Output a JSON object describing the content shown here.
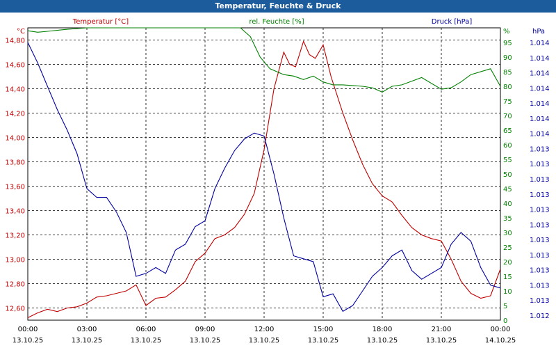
{
  "window": {
    "title": "Temperatur, Feuchte & Druck"
  },
  "chart_data": {
    "type": "line",
    "title": "Temperatur, Feuchte & Druck",
    "x_hours": [
      0,
      3,
      6,
      9,
      12,
      15,
      18,
      21,
      24
    ],
    "x_tick_times": [
      "00:00",
      "03:00",
      "06:00",
      "09:00",
      "12:00",
      "15:00",
      "18:00",
      "21:00",
      "00:00"
    ],
    "x_tick_dates": [
      "13.10.25",
      "13.10.25",
      "13.10.25",
      "13.10.25",
      "13.10.25",
      "13.10.25",
      "13.10.25",
      "13.10.25",
      "14.10.25"
    ],
    "axes": {
      "left": {
        "label": "Temperatur [°C]",
        "unit": "°C",
        "color": "#c00000",
        "range": [
          12.5,
          14.9
        ],
        "ticks": [
          "14,80",
          "14,60",
          "14,40",
          "14,20",
          "14,00",
          "13,80",
          "13,60",
          "13,40",
          "13,20",
          "13,00",
          "12,80",
          "12,60"
        ]
      },
      "right1": {
        "label": "rel. Feuchte [%]",
        "unit": "%",
        "color": "#008000",
        "range": [
          0,
          100
        ],
        "ticks": [
          "95",
          "90",
          "85",
          "80",
          "75",
          "70",
          "65",
          "60",
          "55",
          "50",
          "45",
          "40",
          "35",
          "30",
          "25",
          "20",
          "15",
          "10",
          "5",
          "0"
        ]
      },
      "right2": {
        "label": "Druck [hPa]",
        "unit": "hPa",
        "color": "#0000a0",
        "ticks": [
          "1.014",
          "1.014",
          "1.014",
          "1.014",
          "1.014",
          "1.014",
          "1.014",
          "1.013",
          "1.013",
          "1.013",
          "1.013",
          "1.013",
          "1.013",
          "1.013",
          "1.013",
          "1.013",
          "1.013",
          "1.013",
          "1.012"
        ]
      }
    },
    "series": [
      {
        "name": "Temperatur",
        "axis": "left",
        "color": "#c00000",
        "points": [
          [
            0,
            12.52
          ],
          [
            0.5,
            12.56
          ],
          [
            1,
            12.59
          ],
          [
            1.5,
            12.57
          ],
          [
            2,
            12.6
          ],
          [
            2.5,
            12.61
          ],
          [
            3,
            12.64
          ],
          [
            3.5,
            12.69
          ],
          [
            4,
            12.7
          ],
          [
            4.5,
            12.72
          ],
          [
            5,
            12.74
          ],
          [
            5.5,
            12.79
          ],
          [
            6,
            12.62
          ],
          [
            6.5,
            12.68
          ],
          [
            7,
            12.69
          ],
          [
            7.5,
            12.75
          ],
          [
            8,
            12.82
          ],
          [
            8.5,
            12.98
          ],
          [
            9,
            13.05
          ],
          [
            9.5,
            13.17
          ],
          [
            10,
            13.2
          ],
          [
            10.5,
            13.26
          ],
          [
            11,
            13.37
          ],
          [
            11.5,
            13.54
          ],
          [
            12,
            13.9
          ],
          [
            12.5,
            14.4
          ],
          [
            13,
            14.7
          ],
          [
            13.3,
            14.6
          ],
          [
            13.6,
            14.58
          ],
          [
            14,
            14.79
          ],
          [
            14.3,
            14.68
          ],
          [
            14.6,
            14.65
          ],
          [
            15,
            14.76
          ],
          [
            15.4,
            14.5
          ],
          [
            16,
            14.2
          ],
          [
            16.5,
            13.98
          ],
          [
            17,
            13.78
          ],
          [
            17.5,
            13.62
          ],
          [
            18,
            13.52
          ],
          [
            18.5,
            13.47
          ],
          [
            19,
            13.36
          ],
          [
            19.5,
            13.26
          ],
          [
            20,
            13.2
          ],
          [
            20.5,
            13.17
          ],
          [
            21,
            13.15
          ],
          [
            21.5,
            13.0
          ],
          [
            22,
            12.82
          ],
          [
            22.5,
            12.72
          ],
          [
            23,
            12.68
          ],
          [
            23.5,
            12.7
          ],
          [
            24,
            12.92
          ]
        ]
      },
      {
        "name": "rel. Feuchte",
        "axis": "right1",
        "color": "#008000",
        "points": [
          [
            0,
            99
          ],
          [
            0.5,
            98.5
          ],
          [
            1,
            98.8
          ],
          [
            2,
            99.5
          ],
          [
            3,
            100
          ],
          [
            4,
            100.5
          ],
          [
            5,
            100.5
          ],
          [
            6,
            100.5
          ],
          [
            7,
            100.5
          ],
          [
            8,
            100.5
          ],
          [
            9,
            100.5
          ],
          [
            10,
            100.2
          ],
          [
            10.8,
            100
          ],
          [
            11.3,
            97
          ],
          [
            11.8,
            90
          ],
          [
            12.3,
            86
          ],
          [
            13,
            84
          ],
          [
            13.5,
            83.5
          ],
          [
            14,
            82.3
          ],
          [
            14.5,
            83.5
          ],
          [
            15,
            81.5
          ],
          [
            15.5,
            80.5
          ],
          [
            16,
            80.5
          ],
          [
            17,
            80
          ],
          [
            17.5,
            79.5
          ],
          [
            18,
            78
          ],
          [
            18.5,
            80
          ],
          [
            19,
            80.5
          ],
          [
            20,
            83
          ],
          [
            21,
            79
          ],
          [
            21.5,
            79.5
          ],
          [
            22,
            81.5
          ],
          [
            22.5,
            84
          ],
          [
            23.5,
            86
          ],
          [
            24,
            80
          ]
        ]
      },
      {
        "name": "Druck",
        "axis": "right2",
        "color": "#0000a0",
        "points": [
          [
            0,
            95
          ],
          [
            0.5,
            88
          ],
          [
            1,
            80
          ],
          [
            1.5,
            72
          ],
          [
            2,
            65
          ],
          [
            2.5,
            57
          ],
          [
            3,
            45
          ],
          [
            3.5,
            42
          ],
          [
            4,
            42
          ],
          [
            4.5,
            37
          ],
          [
            5,
            30
          ],
          [
            5.5,
            15
          ],
          [
            6,
            16
          ],
          [
            6.5,
            18
          ],
          [
            7,
            16
          ],
          [
            7.5,
            24
          ],
          [
            8,
            26
          ],
          [
            8.5,
            32
          ],
          [
            9,
            34
          ],
          [
            9.5,
            45
          ],
          [
            10,
            52
          ],
          [
            10.5,
            58
          ],
          [
            11,
            62
          ],
          [
            11.5,
            64
          ],
          [
            12,
            63
          ],
          [
            12.5,
            50
          ],
          [
            13,
            35
          ],
          [
            13.5,
            22
          ],
          [
            14,
            21
          ],
          [
            14.5,
            20
          ],
          [
            15,
            8
          ],
          [
            15.5,
            9
          ],
          [
            16,
            3
          ],
          [
            16.5,
            5
          ],
          [
            17,
            10
          ],
          [
            17.5,
            15
          ],
          [
            18,
            18
          ],
          [
            18.5,
            22
          ],
          [
            19,
            24
          ],
          [
            19.5,
            17
          ],
          [
            20,
            14
          ],
          [
            20.5,
            16
          ],
          [
            21,
            18
          ],
          [
            21.5,
            26
          ],
          [
            22,
            30
          ],
          [
            22.5,
            27
          ],
          [
            23,
            18
          ],
          [
            23.5,
            12
          ],
          [
            24,
            11
          ]
        ]
      }
    ]
  }
}
